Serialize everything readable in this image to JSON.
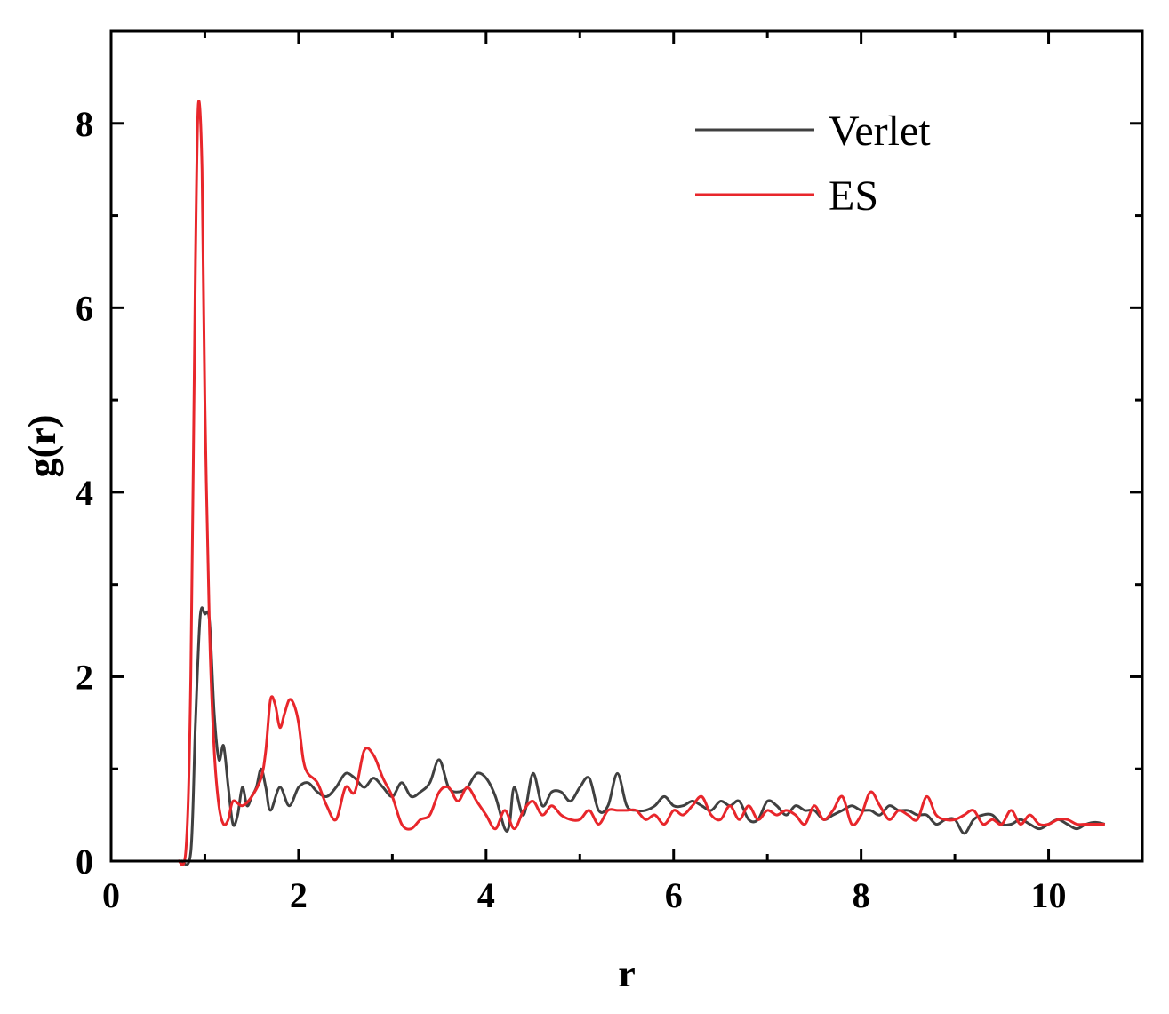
{
  "chart_data": {
    "type": "line",
    "title": "",
    "xlabel": "r",
    "ylabel": "g(r)",
    "xlim": [
      0,
      11
    ],
    "ylim": [
      0,
      9
    ],
    "x_ticks": [
      0,
      2,
      4,
      6,
      8,
      10
    ],
    "y_ticks": [
      0,
      2,
      4,
      6,
      8
    ],
    "grid": false,
    "legend_position": "top-right",
    "series": [
      {
        "name": "Verlet",
        "color": "#404040",
        "points": [
          [
            0.75,
            0
          ],
          [
            0.85,
            0.1
          ],
          [
            0.9,
            1.5
          ],
          [
            0.95,
            2.65
          ],
          [
            1.0,
            2.68
          ],
          [
            1.05,
            2.6
          ],
          [
            1.1,
            1.6
          ],
          [
            1.15,
            1.1
          ],
          [
            1.2,
            1.25
          ],
          [
            1.25,
            0.8
          ],
          [
            1.3,
            0.4
          ],
          [
            1.35,
            0.5
          ],
          [
            1.4,
            0.8
          ],
          [
            1.45,
            0.6
          ],
          [
            1.5,
            0.7
          ],
          [
            1.55,
            0.8
          ],
          [
            1.6,
            1.0
          ],
          [
            1.65,
            0.8
          ],
          [
            1.7,
            0.55
          ],
          [
            1.8,
            0.8
          ],
          [
            1.9,
            0.6
          ],
          [
            2.0,
            0.8
          ],
          [
            2.1,
            0.85
          ],
          [
            2.2,
            0.75
          ],
          [
            2.3,
            0.7
          ],
          [
            2.4,
            0.8
          ],
          [
            2.5,
            0.95
          ],
          [
            2.6,
            0.9
          ],
          [
            2.7,
            0.8
          ],
          [
            2.8,
            0.9
          ],
          [
            2.9,
            0.8
          ],
          [
            3.0,
            0.7
          ],
          [
            3.1,
            0.85
          ],
          [
            3.2,
            0.7
          ],
          [
            3.3,
            0.75
          ],
          [
            3.4,
            0.85
          ],
          [
            3.5,
            1.1
          ],
          [
            3.6,
            0.8
          ],
          [
            3.7,
            0.75
          ],
          [
            3.8,
            0.8
          ],
          [
            3.9,
            0.95
          ],
          [
            4.0,
            0.9
          ],
          [
            4.1,
            0.7
          ],
          [
            4.2,
            0.35
          ],
          [
            4.25,
            0.4
          ],
          [
            4.3,
            0.8
          ],
          [
            4.4,
            0.5
          ],
          [
            4.5,
            0.95
          ],
          [
            4.6,
            0.6
          ],
          [
            4.7,
            0.75
          ],
          [
            4.8,
            0.75
          ],
          [
            4.9,
            0.65
          ],
          [
            5.0,
            0.8
          ],
          [
            5.1,
            0.9
          ],
          [
            5.2,
            0.55
          ],
          [
            5.3,
            0.6
          ],
          [
            5.4,
            0.95
          ],
          [
            5.5,
            0.6
          ],
          [
            5.6,
            0.55
          ],
          [
            5.7,
            0.55
          ],
          [
            5.8,
            0.6
          ],
          [
            5.9,
            0.7
          ],
          [
            6.0,
            0.6
          ],
          [
            6.1,
            0.6
          ],
          [
            6.2,
            0.65
          ],
          [
            6.3,
            0.6
          ],
          [
            6.4,
            0.55
          ],
          [
            6.5,
            0.65
          ],
          [
            6.6,
            0.6
          ],
          [
            6.7,
            0.65
          ],
          [
            6.8,
            0.45
          ],
          [
            6.9,
            0.45
          ],
          [
            7.0,
            0.65
          ],
          [
            7.1,
            0.6
          ],
          [
            7.2,
            0.5
          ],
          [
            7.3,
            0.6
          ],
          [
            7.4,
            0.55
          ],
          [
            7.5,
            0.55
          ],
          [
            7.6,
            0.45
          ],
          [
            7.7,
            0.5
          ],
          [
            7.8,
            0.55
          ],
          [
            7.9,
            0.6
          ],
          [
            8.0,
            0.55
          ],
          [
            8.1,
            0.55
          ],
          [
            8.2,
            0.5
          ],
          [
            8.3,
            0.6
          ],
          [
            8.4,
            0.55
          ],
          [
            8.5,
            0.55
          ],
          [
            8.6,
            0.5
          ],
          [
            8.7,
            0.5
          ],
          [
            8.8,
            0.4
          ],
          [
            8.9,
            0.45
          ],
          [
            9.0,
            0.45
          ],
          [
            9.1,
            0.3
          ],
          [
            9.2,
            0.45
          ],
          [
            9.3,
            0.5
          ],
          [
            9.4,
            0.5
          ],
          [
            9.5,
            0.4
          ],
          [
            9.6,
            0.4
          ],
          [
            9.7,
            0.45
          ],
          [
            9.8,
            0.4
          ],
          [
            9.9,
            0.35
          ],
          [
            10.0,
            0.4
          ],
          [
            10.1,
            0.45
          ],
          [
            10.2,
            0.4
          ],
          [
            10.3,
            0.35
          ],
          [
            10.4,
            0.4
          ],
          [
            10.5,
            0.42
          ],
          [
            10.6,
            0.4
          ]
        ]
      },
      {
        "name": "ES",
        "color": "#e8262b",
        "points": [
          [
            0.72,
            0
          ],
          [
            0.8,
            0.15
          ],
          [
            0.85,
            2.0
          ],
          [
            0.9,
            6.5
          ],
          [
            0.93,
            8.2
          ],
          [
            0.97,
            7.5
          ],
          [
            1.0,
            5.0
          ],
          [
            1.05,
            2.5
          ],
          [
            1.1,
            1.2
          ],
          [
            1.15,
            0.6
          ],
          [
            1.2,
            0.4
          ],
          [
            1.25,
            0.45
          ],
          [
            1.3,
            0.65
          ],
          [
            1.4,
            0.6
          ],
          [
            1.5,
            0.7
          ],
          [
            1.6,
            0.9
          ],
          [
            1.65,
            1.2
          ],
          [
            1.7,
            1.75
          ],
          [
            1.75,
            1.7
          ],
          [
            1.8,
            1.45
          ],
          [
            1.85,
            1.6
          ],
          [
            1.9,
            1.75
          ],
          [
            1.95,
            1.7
          ],
          [
            2.0,
            1.5
          ],
          [
            2.05,
            1.1
          ],
          [
            2.1,
            0.95
          ],
          [
            2.2,
            0.85
          ],
          [
            2.3,
            0.6
          ],
          [
            2.4,
            0.45
          ],
          [
            2.5,
            0.8
          ],
          [
            2.6,
            0.75
          ],
          [
            2.7,
            1.2
          ],
          [
            2.8,
            1.15
          ],
          [
            2.9,
            0.9
          ],
          [
            3.0,
            0.7
          ],
          [
            3.1,
            0.4
          ],
          [
            3.2,
            0.35
          ],
          [
            3.3,
            0.45
          ],
          [
            3.4,
            0.5
          ],
          [
            3.5,
            0.75
          ],
          [
            3.6,
            0.8
          ],
          [
            3.7,
            0.65
          ],
          [
            3.8,
            0.8
          ],
          [
            3.9,
            0.65
          ],
          [
            4.0,
            0.5
          ],
          [
            4.1,
            0.35
          ],
          [
            4.2,
            0.55
          ],
          [
            4.3,
            0.35
          ],
          [
            4.4,
            0.55
          ],
          [
            4.5,
            0.65
          ],
          [
            4.6,
            0.5
          ],
          [
            4.7,
            0.6
          ],
          [
            4.8,
            0.5
          ],
          [
            4.9,
            0.45
          ],
          [
            5.0,
            0.45
          ],
          [
            5.1,
            0.55
          ],
          [
            5.2,
            0.4
          ],
          [
            5.3,
            0.55
          ],
          [
            5.4,
            0.55
          ],
          [
            5.5,
            0.55
          ],
          [
            5.6,
            0.55
          ],
          [
            5.7,
            0.45
          ],
          [
            5.8,
            0.5
          ],
          [
            5.9,
            0.4
          ],
          [
            6.0,
            0.55
          ],
          [
            6.1,
            0.5
          ],
          [
            6.2,
            0.6
          ],
          [
            6.3,
            0.7
          ],
          [
            6.4,
            0.5
          ],
          [
            6.5,
            0.45
          ],
          [
            6.6,
            0.6
          ],
          [
            6.7,
            0.45
          ],
          [
            6.8,
            0.6
          ],
          [
            6.9,
            0.45
          ],
          [
            7.0,
            0.55
          ],
          [
            7.1,
            0.5
          ],
          [
            7.2,
            0.55
          ],
          [
            7.3,
            0.5
          ],
          [
            7.4,
            0.4
          ],
          [
            7.5,
            0.6
          ],
          [
            7.6,
            0.45
          ],
          [
            7.7,
            0.55
          ],
          [
            7.8,
            0.7
          ],
          [
            7.9,
            0.4
          ],
          [
            8.0,
            0.5
          ],
          [
            8.1,
            0.75
          ],
          [
            8.2,
            0.6
          ],
          [
            8.3,
            0.45
          ],
          [
            8.4,
            0.55
          ],
          [
            8.5,
            0.5
          ],
          [
            8.6,
            0.45
          ],
          [
            8.7,
            0.7
          ],
          [
            8.8,
            0.5
          ],
          [
            8.9,
            0.45
          ],
          [
            9.0,
            0.45
          ],
          [
            9.1,
            0.5
          ],
          [
            9.2,
            0.55
          ],
          [
            9.3,
            0.4
          ],
          [
            9.4,
            0.45
          ],
          [
            9.5,
            0.4
          ],
          [
            9.6,
            0.55
          ],
          [
            9.7,
            0.4
          ],
          [
            9.8,
            0.5
          ],
          [
            9.9,
            0.4
          ],
          [
            10.0,
            0.4
          ],
          [
            10.1,
            0.45
          ],
          [
            10.2,
            0.45
          ],
          [
            10.3,
            0.4
          ],
          [
            10.4,
            0.4
          ],
          [
            10.5,
            0.4
          ],
          [
            10.6,
            0.4
          ]
        ]
      }
    ]
  }
}
